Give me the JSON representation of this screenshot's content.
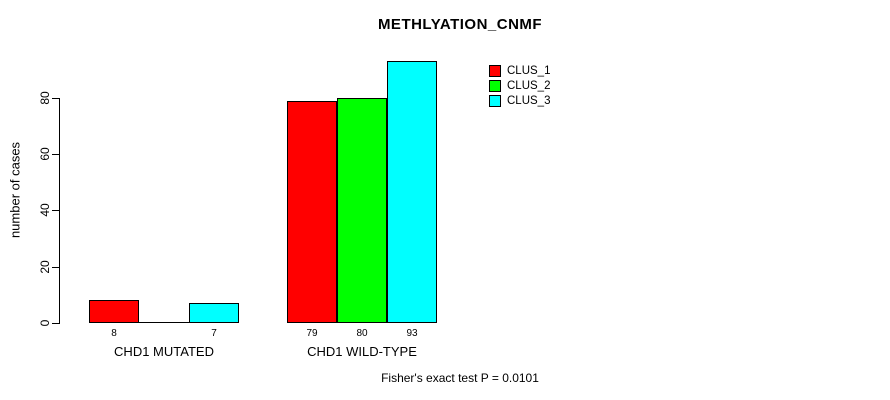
{
  "chart_data": {
    "type": "bar",
    "title": "METHLYATION_CNMF",
    "ylabel": "number of cases",
    "xlabel": "",
    "categories": [
      "CHD1 MUTATED",
      "CHD1 WILD-TYPE"
    ],
    "series": [
      {
        "name": "CLUS_1",
        "color": "#ff0000",
        "values": [
          8,
          79
        ]
      },
      {
        "name": "CLUS_2",
        "color": "#00ff00",
        "values": [
          0,
          80
        ]
      },
      {
        "name": "CLUS_3",
        "color": "#00ffff",
        "values": [
          7,
          93
        ]
      }
    ],
    "bar_labels": [
      [
        "8",
        "",
        "7"
      ],
      [
        "79",
        "80",
        "93"
      ]
    ],
    "yticks": [
      0,
      20,
      40,
      60,
      80
    ],
    "ylim": [
      0,
      93
    ],
    "grid": false,
    "legend_position": "top-right",
    "annotation": "Fisher's exact test P = 0.0101",
    "bar_border_color": "#000000",
    "background_color": "#ffffff"
  }
}
